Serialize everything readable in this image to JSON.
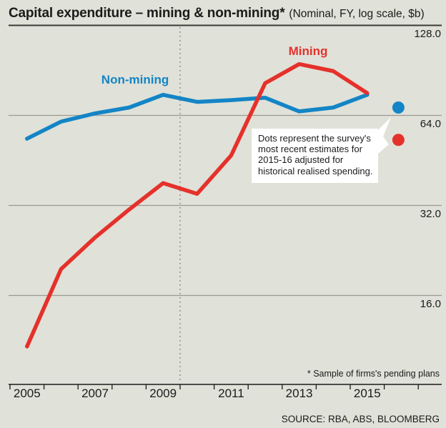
{
  "header": {
    "title": "Capital expenditure – mining & non-mining*",
    "subtitle": "(Nominal, FY, log scale, $b)"
  },
  "annotation": {
    "lines": [
      "Dots represent the survey's",
      "most recent estimates for",
      "2015-16 adjusted for",
      "historical realised spending."
    ]
  },
  "footer": {
    "footnote": "* Sample of firms's pending plans",
    "source": "SOURCE: RBA, ABS, BLOOMBERG"
  },
  "colors": {
    "background": "#e0e1d8",
    "mining": "#e5312b",
    "non_mining": "#1385c6",
    "grid": "#9a9a92",
    "top_rule": "#3c3c36",
    "axis": "#1b1b1b",
    "dotted_line": "#8e8e86",
    "callout_bg": "#ffffff",
    "text": "#1b1b1b"
  },
  "chart_data": {
    "type": "line",
    "title": "Capital expenditure – mining & non-mining*",
    "subtitle": "(Nominal, FY, log scale, $b)",
    "x": [
      2005,
      2006,
      2007,
      2008,
      2009,
      2010,
      2011,
      2012,
      2013,
      2014,
      2015
    ],
    "x_range": [
      2004.5,
      2016.5
    ],
    "y_scale": "log2",
    "y_ticks": [
      128,
      64,
      32,
      16
    ],
    "y_tick_labels": [
      "128.0",
      "64.0",
      "32.0",
      "16.0"
    ],
    "x_tick_labels": [
      "2005",
      "2007",
      "2009",
      "2011",
      "2013",
      "2015"
    ],
    "grid": "horizontal",
    "dotted_vline_x": 2009.5,
    "estimate_x": 2016,
    "series": [
      {
        "name": "Mining",
        "color": "#e5312b",
        "values": [
          10.8,
          19.6,
          25,
          31,
          38,
          35,
          47,
          82,
          95,
          90,
          76
        ],
        "estimate_2015_16": 53
      },
      {
        "name": "Non-mining",
        "color": "#1385c6",
        "values": [
          53.5,
          61,
          65,
          68,
          75,
          71,
          72,
          73.3,
          66,
          68,
          75
        ],
        "estimate_2015_16": 68
      }
    ]
  }
}
